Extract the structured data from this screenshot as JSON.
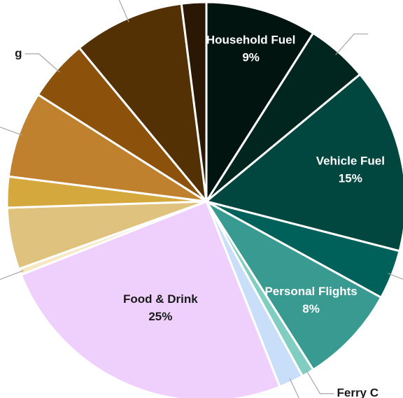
{
  "chart_data": {
    "type": "pie",
    "categories": [
      "Household Fuel",
      null,
      "Vehicle Fuel",
      null,
      "Personal Flights",
      "Ferry C",
      null,
      "Food & Drink",
      null,
      null,
      null,
      null,
      "g",
      null,
      null
    ],
    "values": [
      9,
      5,
      15,
      4,
      8,
      1,
      2,
      25,
      0.5,
      5,
      2.5,
      7,
      5,
      9,
      2
    ],
    "value_labels": [
      "9%",
      null,
      "15%",
      null,
      "8%",
      null,
      null,
      "25%",
      null,
      null,
      null,
      null,
      null,
      null,
      null
    ],
    "colors": [
      "#02140f",
      "#00261f",
      "#01473f",
      "#00605a",
      "#389a91",
      "#80cdc1",
      "#c9def8",
      "#efd0fc",
      "#f6e8c3",
      "#dfc27d",
      "#d4a83c",
      "#bf812d",
      "#8c510a",
      "#543005",
      "#2a1804"
    ]
  }
}
